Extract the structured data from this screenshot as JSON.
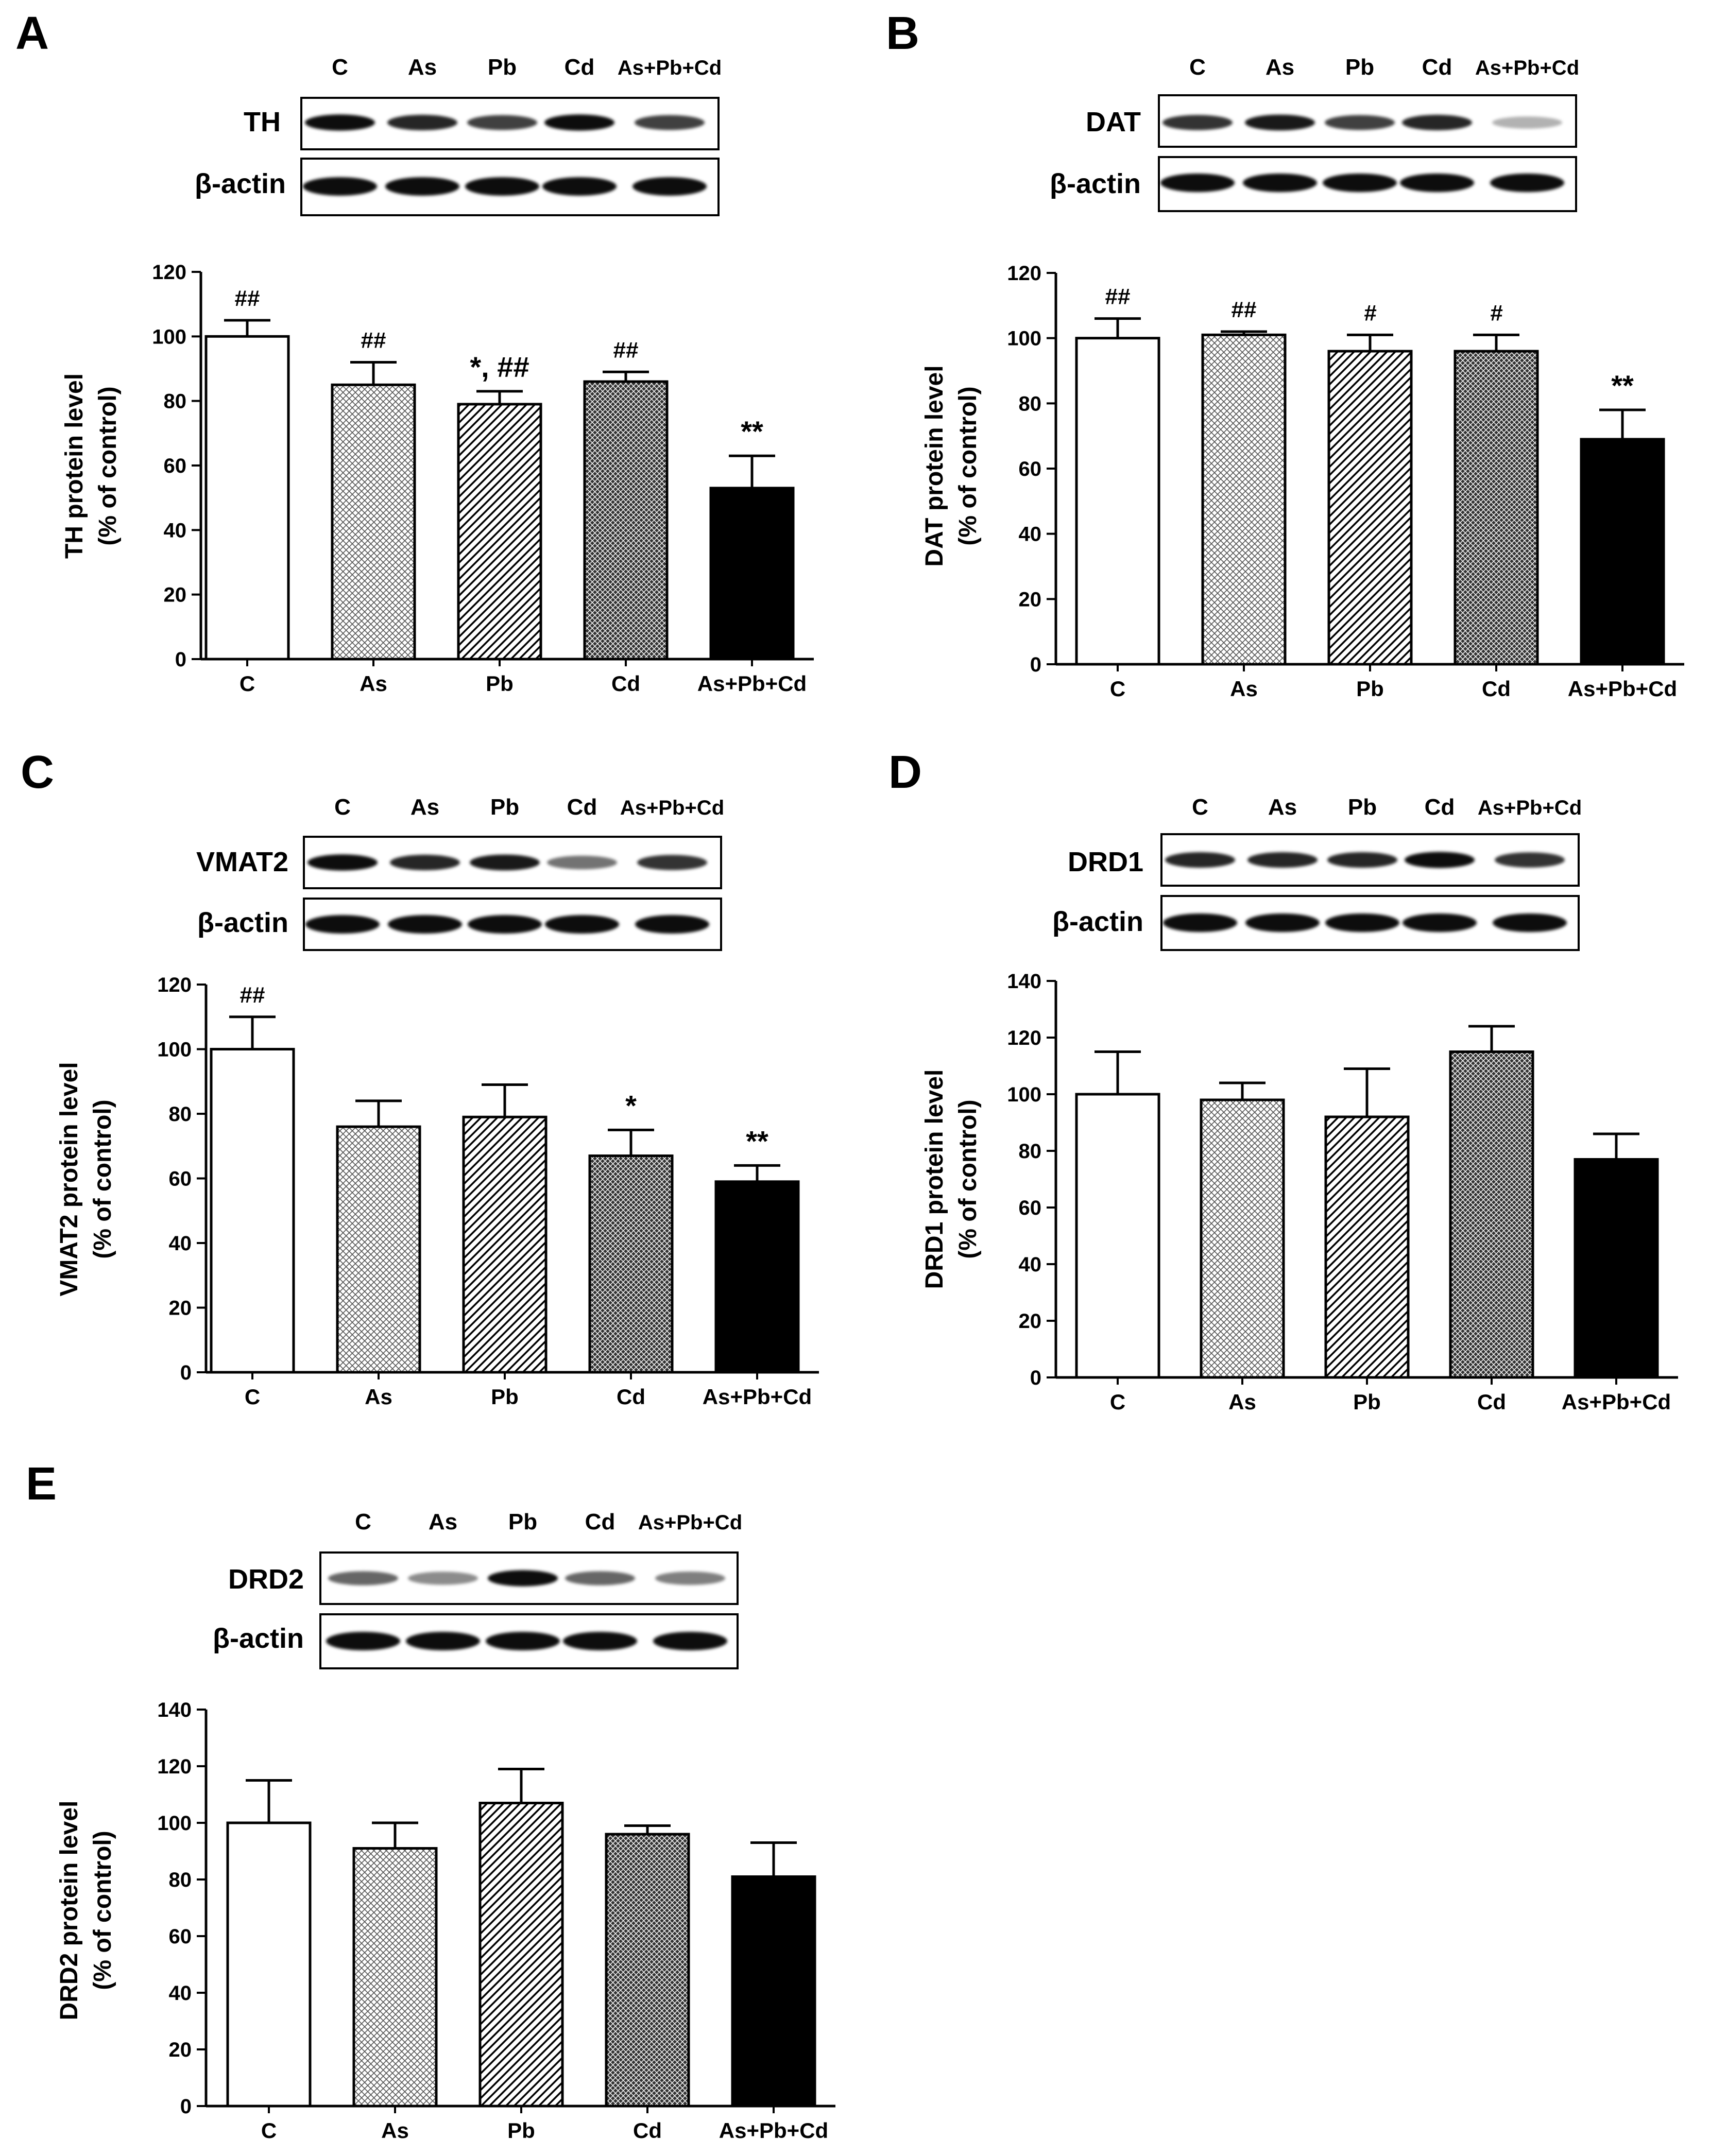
{
  "chart_data": [
    {
      "panel_label": "A",
      "type": "bar",
      "protein": "TH",
      "loading_control": "β-actin",
      "lane_labels": [
        "C",
        "As",
        "Pb",
        "Cd",
        "As+Pb+Cd"
      ],
      "categories": [
        "C",
        "As",
        "Pb",
        "Cd",
        "As+Pb+Cd"
      ],
      "values": [
        100,
        85,
        79,
        86,
        53
      ],
      "errors": [
        5,
        7,
        4,
        3,
        10
      ],
      "annotations": [
        "##",
        "##",
        "*, ##",
        "##",
        "**"
      ],
      "ylabel_line1": "TH protein level",
      "ylabel_line2": "(% of control)",
      "ylim": [
        0,
        120
      ],
      "yticks": [
        0,
        20,
        40,
        60,
        80,
        100,
        120
      ],
      "band_intensity": [
        0.95,
        0.85,
        0.75,
        0.95,
        0.75
      ]
    },
    {
      "panel_label": "B",
      "type": "bar",
      "protein": "DAT",
      "loading_control": "β-actin",
      "lane_labels": [
        "C",
        "As",
        "Pb",
        "Cd",
        "As+Pb+Cd"
      ],
      "categories": [
        "C",
        "As",
        "Pb",
        "Cd",
        "As+Pb+Cd"
      ],
      "values": [
        100,
        101,
        96,
        96,
        69
      ],
      "errors": [
        6,
        1,
        5,
        5,
        9
      ],
      "annotations": [
        "##",
        "##",
        "#",
        "#",
        "**"
      ],
      "ylabel_line1": "DAT protein level",
      "ylabel_line2": "(% of control)",
      "ylim": [
        0,
        120
      ],
      "yticks": [
        0,
        20,
        40,
        60,
        80,
        100,
        120
      ],
      "band_intensity": [
        0.8,
        0.9,
        0.75,
        0.85,
        0.3
      ]
    },
    {
      "panel_label": "C",
      "type": "bar",
      "protein": "VMAT2",
      "loading_control": "β-actin",
      "lane_labels": [
        "C",
        "As",
        "Pb",
        "Cd",
        "As+Pb+Cd"
      ],
      "categories": [
        "C",
        "As",
        "Pb",
        "Cd",
        "As+Pb+Cd"
      ],
      "values": [
        100,
        76,
        79,
        67,
        59
      ],
      "errors": [
        10,
        8,
        10,
        8,
        5
      ],
      "annotations": [
        "##",
        "",
        "",
        "*",
        "**"
      ],
      "ylabel_line1": "VMAT2 protein level",
      "ylabel_line2": "(% of control)",
      "ylim": [
        0,
        120
      ],
      "yticks": [
        0,
        20,
        40,
        60,
        80,
        100,
        120
      ],
      "band_intensity": [
        0.95,
        0.85,
        0.9,
        0.55,
        0.8
      ]
    },
    {
      "panel_label": "D",
      "type": "bar",
      "protein": "DRD1",
      "loading_control": "β-actin",
      "lane_labels": [
        "C",
        "As",
        "Pb",
        "Cd",
        "As+Pb+Cd"
      ],
      "categories": [
        "C",
        "As",
        "Pb",
        "Cd",
        "As+Pb+Cd"
      ],
      "values": [
        100,
        98,
        92,
        115,
        77
      ],
      "errors": [
        15,
        6,
        17,
        9,
        9
      ],
      "annotations": [
        "",
        "",
        "",
        "",
        ""
      ],
      "ylabel_line1": "DRD1 protein level",
      "ylabel_line2": "(% of control)",
      "ylim": [
        0,
        140
      ],
      "yticks": [
        0,
        20,
        40,
        60,
        80,
        100,
        120,
        140
      ],
      "band_intensity": [
        0.85,
        0.85,
        0.85,
        0.95,
        0.8
      ]
    },
    {
      "panel_label": "E",
      "type": "bar",
      "protein": "DRD2",
      "loading_control": "β-actin",
      "lane_labels": [
        "C",
        "As",
        "Pb",
        "Cd",
        "As+Pb+Cd"
      ],
      "categories": [
        "C",
        "As",
        "Pb",
        "Cd",
        "As+Pb+Cd"
      ],
      "values": [
        100,
        91,
        107,
        96,
        81
      ],
      "errors": [
        15,
        9,
        12,
        3,
        12
      ],
      "annotations": [
        "",
        "",
        "",
        "",
        ""
      ],
      "ylabel_line1": "DRD2 protein level",
      "ylabel_line2": "(% of control)",
      "ylim": [
        0,
        140
      ],
      "yticks": [
        0,
        20,
        40,
        60,
        80,
        100,
        120,
        140
      ],
      "band_intensity": [
        0.6,
        0.45,
        0.95,
        0.6,
        0.5
      ]
    }
  ]
}
